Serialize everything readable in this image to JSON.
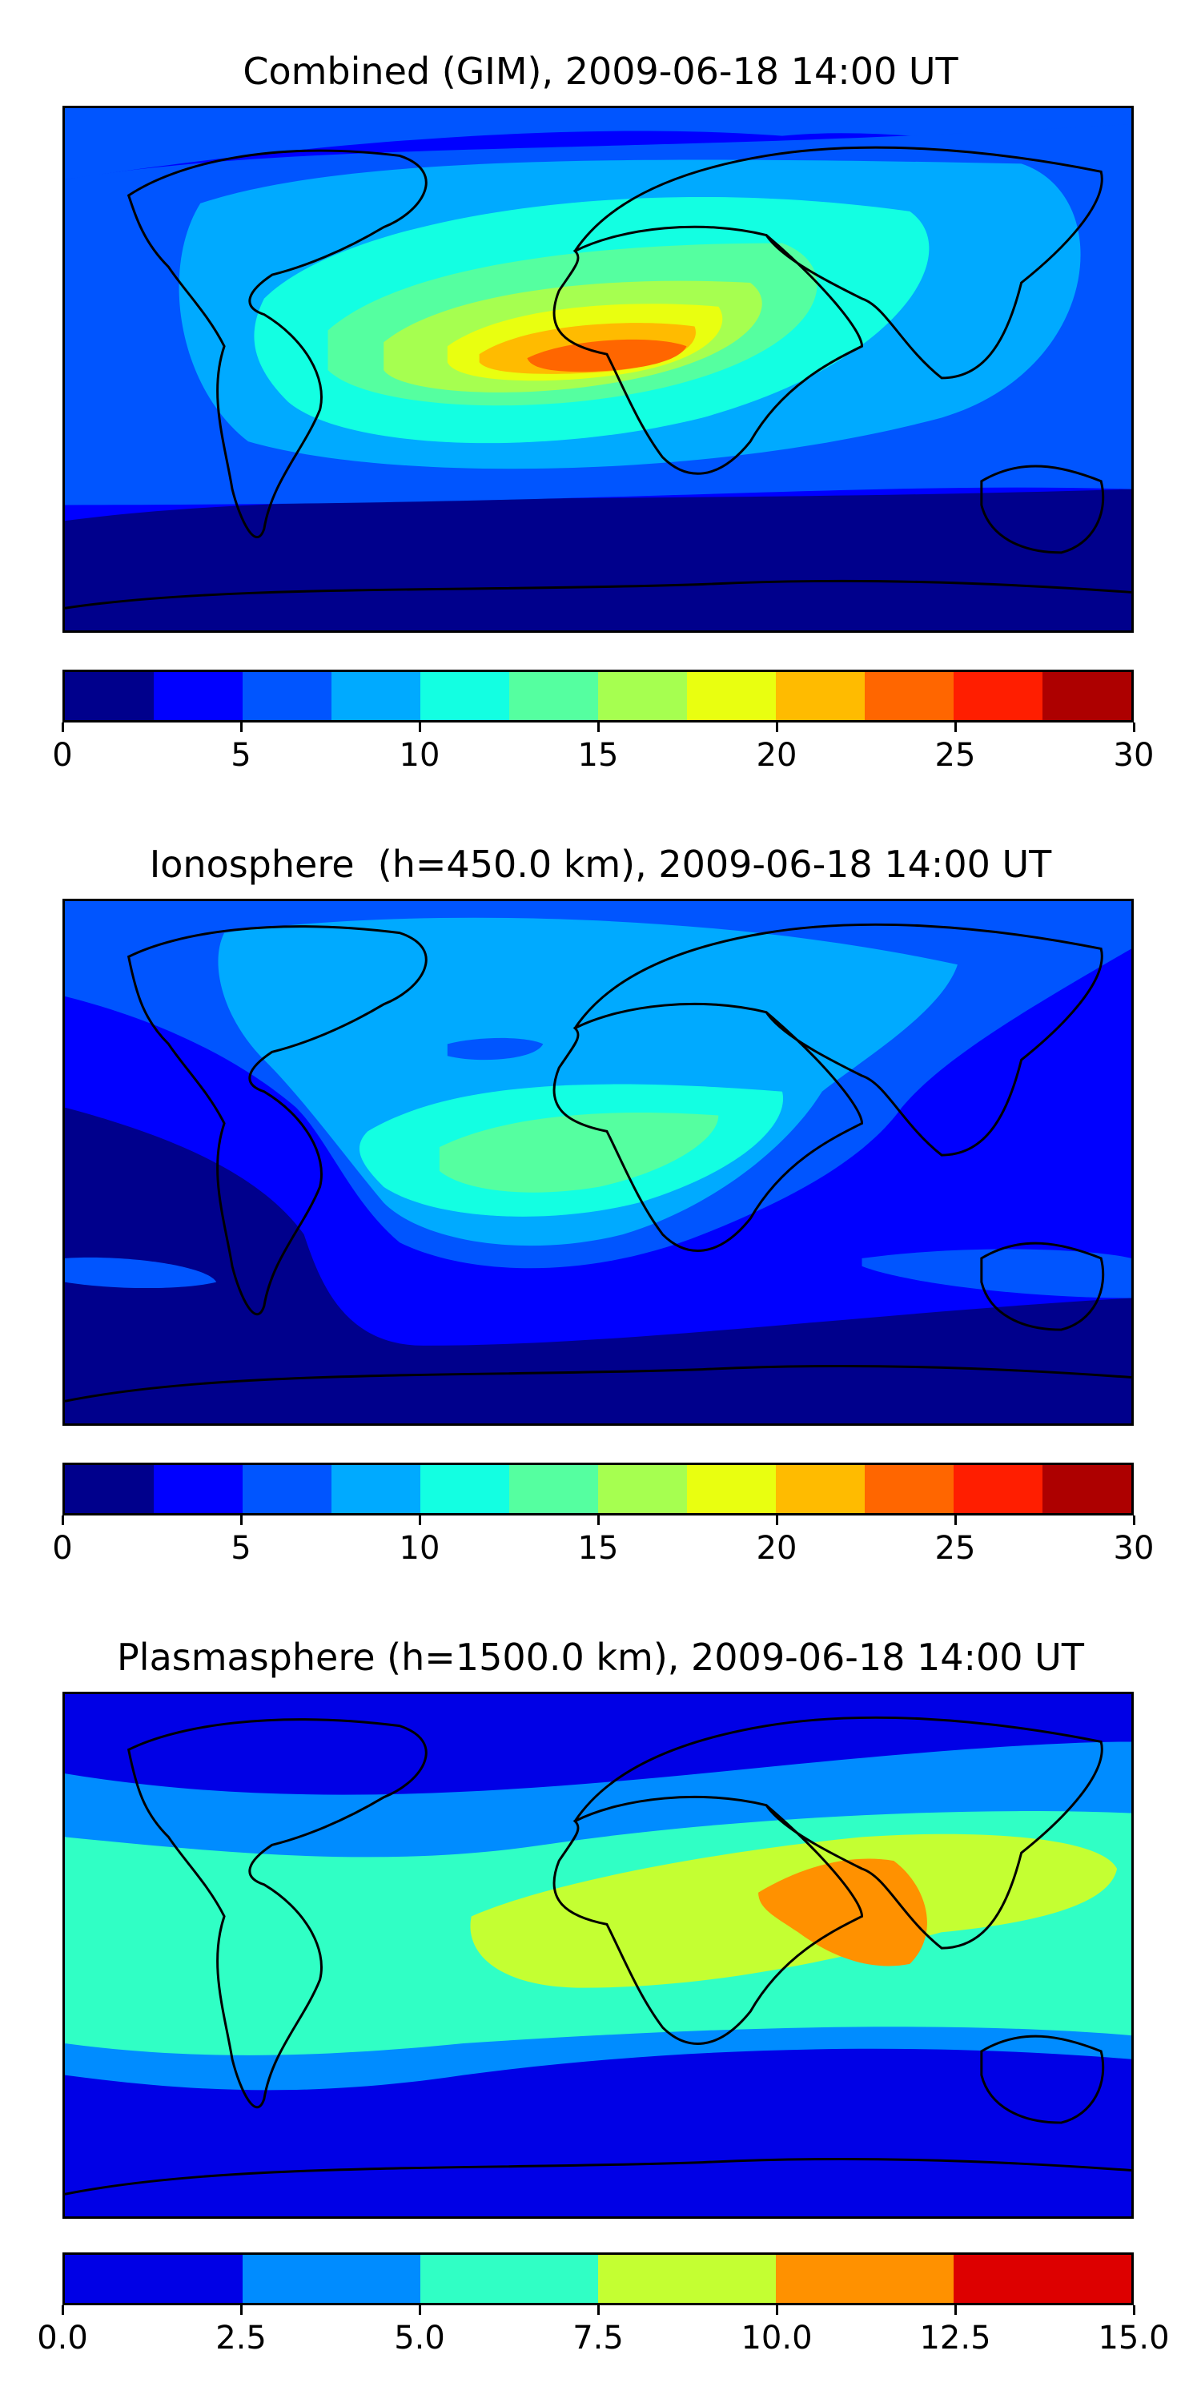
{
  "maps": [
    {
      "title": "Combined (GIM), 2009-06-18 14:00 UT",
      "colorbar": {
        "colors": [
          "#00008c",
          "#0000ff",
          "#0055ff",
          "#00aaff",
          "#13ffe2",
          "#55ffa0",
          "#a6ff50",
          "#e9ff10",
          "#ffbb00",
          "#ff6600",
          "#ff1e00",
          "#ad0000"
        ],
        "tick_labels": [
          "0",
          "5",
          "10",
          "15",
          "20",
          "25",
          "30"
        ]
      }
    },
    {
      "title": "Ionosphere  (h=450.0 km), 2009-06-18 14:00 UT",
      "colorbar": {
        "colors": [
          "#00008c",
          "#0000ff",
          "#0055ff",
          "#00aaff",
          "#13ffe2",
          "#55ffa0",
          "#a6ff50",
          "#e9ff10",
          "#ffbb00",
          "#ff6600",
          "#ff1e00",
          "#ad0000"
        ],
        "tick_labels": [
          "0",
          "5",
          "10",
          "15",
          "20",
          "25",
          "30"
        ]
      }
    },
    {
      "title": "Plasmasphere (h=1500.0 km), 2009-06-18 14:00 UT",
      "colorbar": {
        "colors": [
          "#0000e6",
          "#008cff",
          "#30ffc5",
          "#c4ff32",
          "#ff9100",
          "#dd0000"
        ],
        "tick_labels": [
          "0.0",
          "2.5",
          "5.0",
          "7.5",
          "10.0",
          "12.5",
          "15.0"
        ]
      }
    }
  ]
}
